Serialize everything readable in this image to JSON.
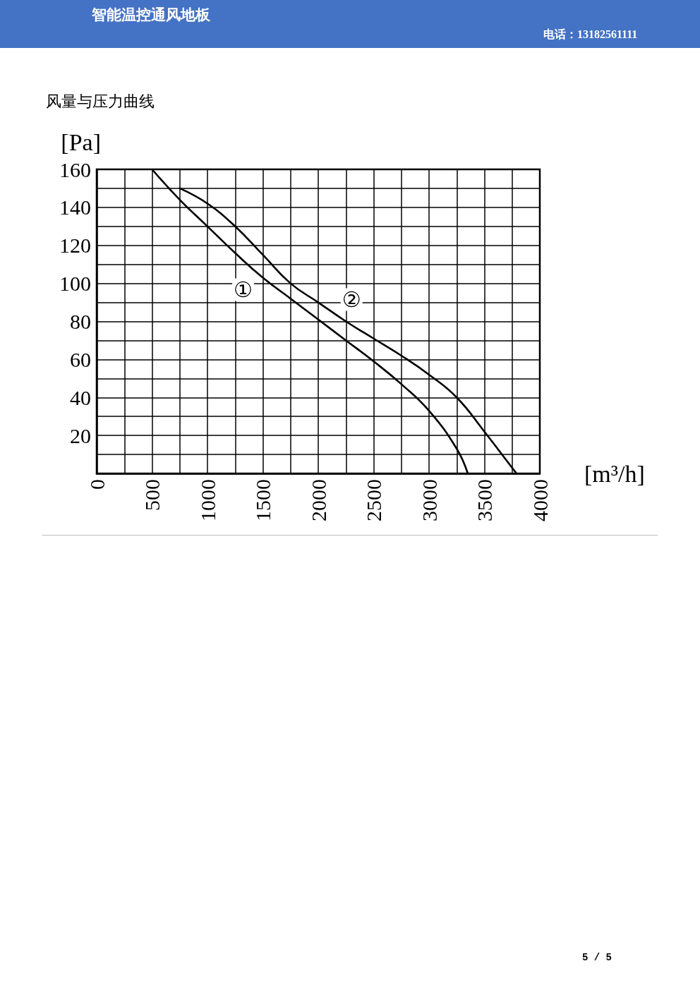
{
  "chart_data": {
    "type": "line",
    "title": "风量与压力曲线",
    "xlabel": "[m³/h]",
    "ylabel": "[Pa]",
    "annotations": [
      "智能温控通风地板",
      "电话：13182561111",
      "5 / 5"
    ],
    "series": [
      {
        "name": "①",
        "color": "#000000",
        "x": [
          500,
          750,
          1000,
          1250,
          1500,
          1750,
          2000,
          2250,
          2500,
          2750,
          3000,
          3250,
          3350
        ],
        "values": [
          160,
          144,
          130,
          116,
          103,
          92,
          81,
          70,
          59,
          47,
          33,
          13,
          0
        ]
      },
      {
        "name": "②",
        "color": "#000000",
        "x": [
          750,
          1000,
          1250,
          1500,
          1750,
          2000,
          2250,
          2500,
          2750,
          3000,
          3250,
          3500,
          3750,
          3790
        ],
        "values": [
          150,
          142,
          130,
          115,
          100,
          90,
          80,
          71,
          62,
          52,
          40,
          22,
          3,
          0
        ]
      }
    ],
    "xlim": [
      0,
      4000
    ],
    "ylim": [
      0,
      160
    ],
    "xticks": [
      0,
      {
        "value": 250,
        "label": null
      },
      500,
      {
        "value": 750,
        "label": null
      },
      1000,
      {
        "value": 1250,
        "label": null
      },
      1500,
      {
        "value": 1750,
        "label": null
      },
      2000,
      {
        "value": 2250,
        "label": null
      },
      2500,
      {
        "value": 2750,
        "label": null
      },
      3000,
      {
        "value": 3250,
        "label": null
      },
      3500,
      {
        "value": 3750,
        "label": null
      },
      4000
    ],
    "yticks": [
      {
        "value": 0,
        "label": null
      },
      {
        "value": 10,
        "label": null
      },
      20,
      {
        "value": 30,
        "label": null
      },
      40,
      {
        "value": 50,
        "label": null
      },
      60,
      {
        "value": 70,
        "label": null
      },
      80,
      {
        "value": 90,
        "label": null
      },
      100,
      {
        "value": 110,
        "label": null
      },
      120,
      {
        "value": 130,
        "label": null
      },
      140,
      {
        "value": 150,
        "label": null
      },
      160
    ],
    "grid": true,
    "marker": "none",
    "line_style": "solid"
  }
}
